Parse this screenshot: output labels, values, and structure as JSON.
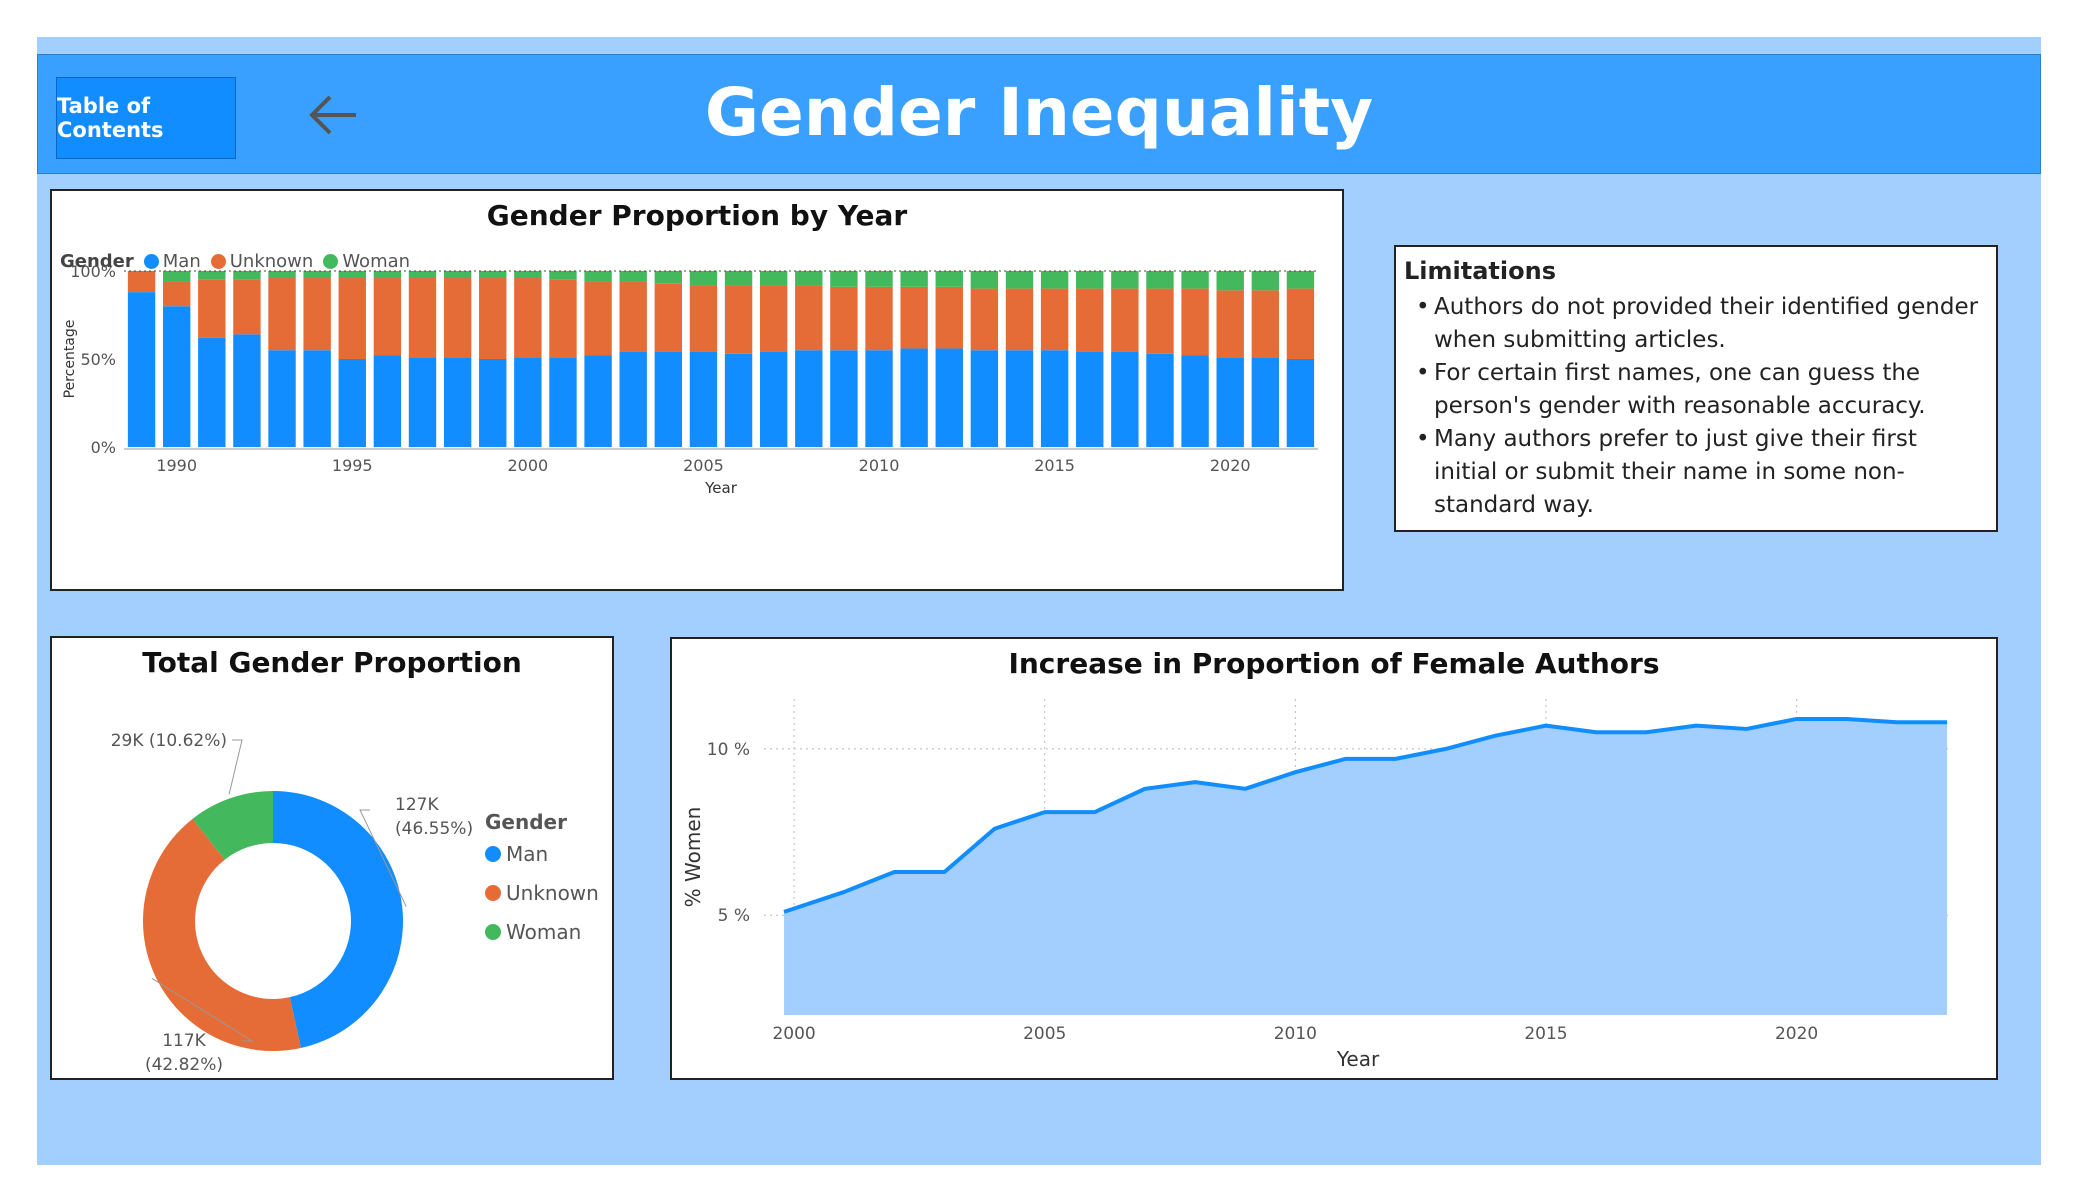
{
  "header": {
    "toc_label": "Table of Contents",
    "title": "Gender Inequality"
  },
  "icons": {
    "back": "arrow-left-icon"
  },
  "colors": {
    "man": "#118dff",
    "unknown": "#e66c37",
    "woman": "#44b85c",
    "header_bg": "#3aa0ff",
    "canvas_bg": "#a2cfff",
    "line": "#118dff",
    "area": "#a2cfff"
  },
  "limitations": {
    "heading": "Limitations",
    "items": [
      "Authors do not provided their identified gender when submitting articles.",
      "For certain first names, one can guess the person's gender with reasonable accuracy.",
      "Many authors prefer to just give their first initial or submit their name in some non-standard way."
    ]
  },
  "chart_data": [
    {
      "id": "bar",
      "type": "bar",
      "stacked": "100%",
      "title": "Gender Proportion by Year",
      "legend_title": "Gender",
      "legend_position": "top-left",
      "xlabel": "Year",
      "ylabel": "Percentage",
      "ylim": [
        0,
        100
      ],
      "yticks": [
        "0%",
        "50%",
        "100%"
      ],
      "xticks": [
        1990,
        1995,
        2000,
        2005,
        2010,
        2015,
        2020
      ],
      "categories": [
        1989,
        1990,
        1991,
        1992,
        1993,
        1994,
        1995,
        1996,
        1997,
        1998,
        1999,
        2000,
        2001,
        2002,
        2003,
        2004,
        2005,
        2006,
        2007,
        2008,
        2009,
        2010,
        2011,
        2012,
        2013,
        2014,
        2015,
        2016,
        2017,
        2018,
        2019,
        2020,
        2021,
        2022
      ],
      "series": [
        {
          "name": "Man",
          "values": [
            88,
            80,
            62,
            64,
            55,
            55,
            50,
            52,
            51,
            51,
            50,
            51,
            51,
            52,
            54,
            54,
            54,
            53,
            54,
            55,
            55,
            55,
            56,
            56,
            55,
            55,
            55,
            54,
            54,
            53,
            52,
            51,
            51,
            50
          ]
        },
        {
          "name": "Unknown",
          "values": [
            12,
            14,
            33,
            31,
            41,
            41,
            46,
            44,
            45,
            45,
            46,
            45,
            44,
            42,
            40,
            39,
            38,
            39,
            38,
            37,
            36,
            36,
            35,
            35,
            35,
            35,
            35,
            36,
            36,
            37,
            38,
            38,
            38,
            40
          ]
        },
        {
          "name": "Woman",
          "values": [
            0,
            6,
            5,
            5,
            4,
            4,
            4,
            4,
            4,
            4,
            4,
            4,
            5,
            6,
            6,
            7,
            8,
            8,
            8,
            8,
            9,
            9,
            9,
            9,
            10,
            10,
            10,
            10,
            10,
            10,
            10,
            11,
            11,
            10
          ]
        }
      ],
      "grid": false
    },
    {
      "id": "donut",
      "type": "pie",
      "donut": true,
      "title": "Total Gender Proportion",
      "legend_title": "Gender",
      "legend_position": "right",
      "slices": [
        {
          "name": "Man",
          "value": 46.55,
          "label": "127K",
          "pct_label": "(46.55%)"
        },
        {
          "name": "Unknown",
          "value": 42.82,
          "label": "117K",
          "pct_label": "(42.82%)"
        },
        {
          "name": "Woman",
          "value": 10.62,
          "label": "29K (10.62%)",
          "pct_label": ""
        }
      ]
    },
    {
      "id": "line",
      "type": "area",
      "title": "Increase in Proportion of Female Authors",
      "xlabel": "Year",
      "ylabel": "% Women",
      "xlim": [
        1999.4,
        2023.1
      ],
      "ylim": [
        2,
        11.5
      ],
      "yticks": [
        {
          "value": 5,
          "label": "5 %"
        },
        {
          "value": 10,
          "label": "10 %"
        }
      ],
      "xticks": [
        2000,
        2005,
        2010,
        2015,
        2020
      ],
      "x": [
        1999.8,
        2001,
        2002,
        2003,
        2004,
        2005,
        2006,
        2007,
        2008,
        2009,
        2010,
        2011,
        2012,
        2013,
        2014,
        2015,
        2016,
        2017,
        2018,
        2019,
        2020,
        2021,
        2022,
        2023
      ],
      "values": [
        5.1,
        5.7,
        6.3,
        6.3,
        7.6,
        8.1,
        8.1,
        8.8,
        9.0,
        8.8,
        9.3,
        9.7,
        9.7,
        10.0,
        10.4,
        10.7,
        10.5,
        10.5,
        10.7,
        10.6,
        10.9,
        10.9,
        10.8,
        10.8
      ],
      "grid": true
    }
  ]
}
